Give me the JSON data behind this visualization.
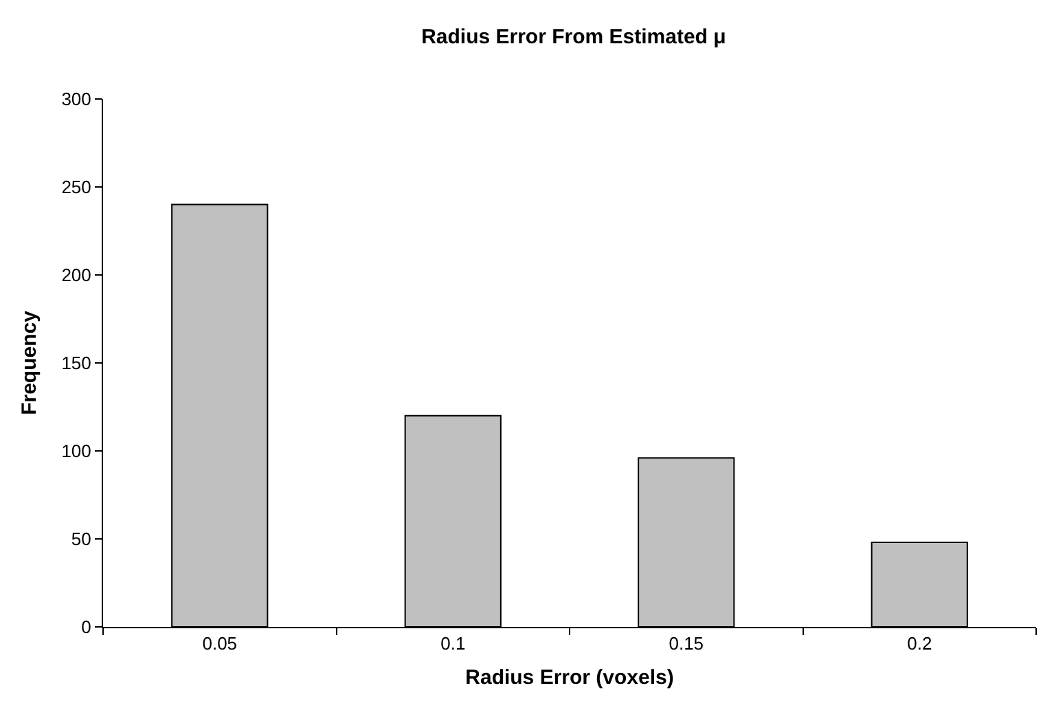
{
  "chart_data": {
    "type": "bar",
    "title": "Radius Error From Estimated μ",
    "xlabel": "Radius Error (voxels)",
    "ylabel": "Frequency",
    "categories": [
      "0.05",
      "0.1",
      "0.15",
      "0.2"
    ],
    "values": [
      240,
      120,
      96,
      48
    ],
    "color": "#c0c0c0",
    "ylim": [
      0,
      300
    ],
    "yticks": [
      0,
      50,
      100,
      150,
      200,
      250,
      300
    ],
    "grid": false
  }
}
